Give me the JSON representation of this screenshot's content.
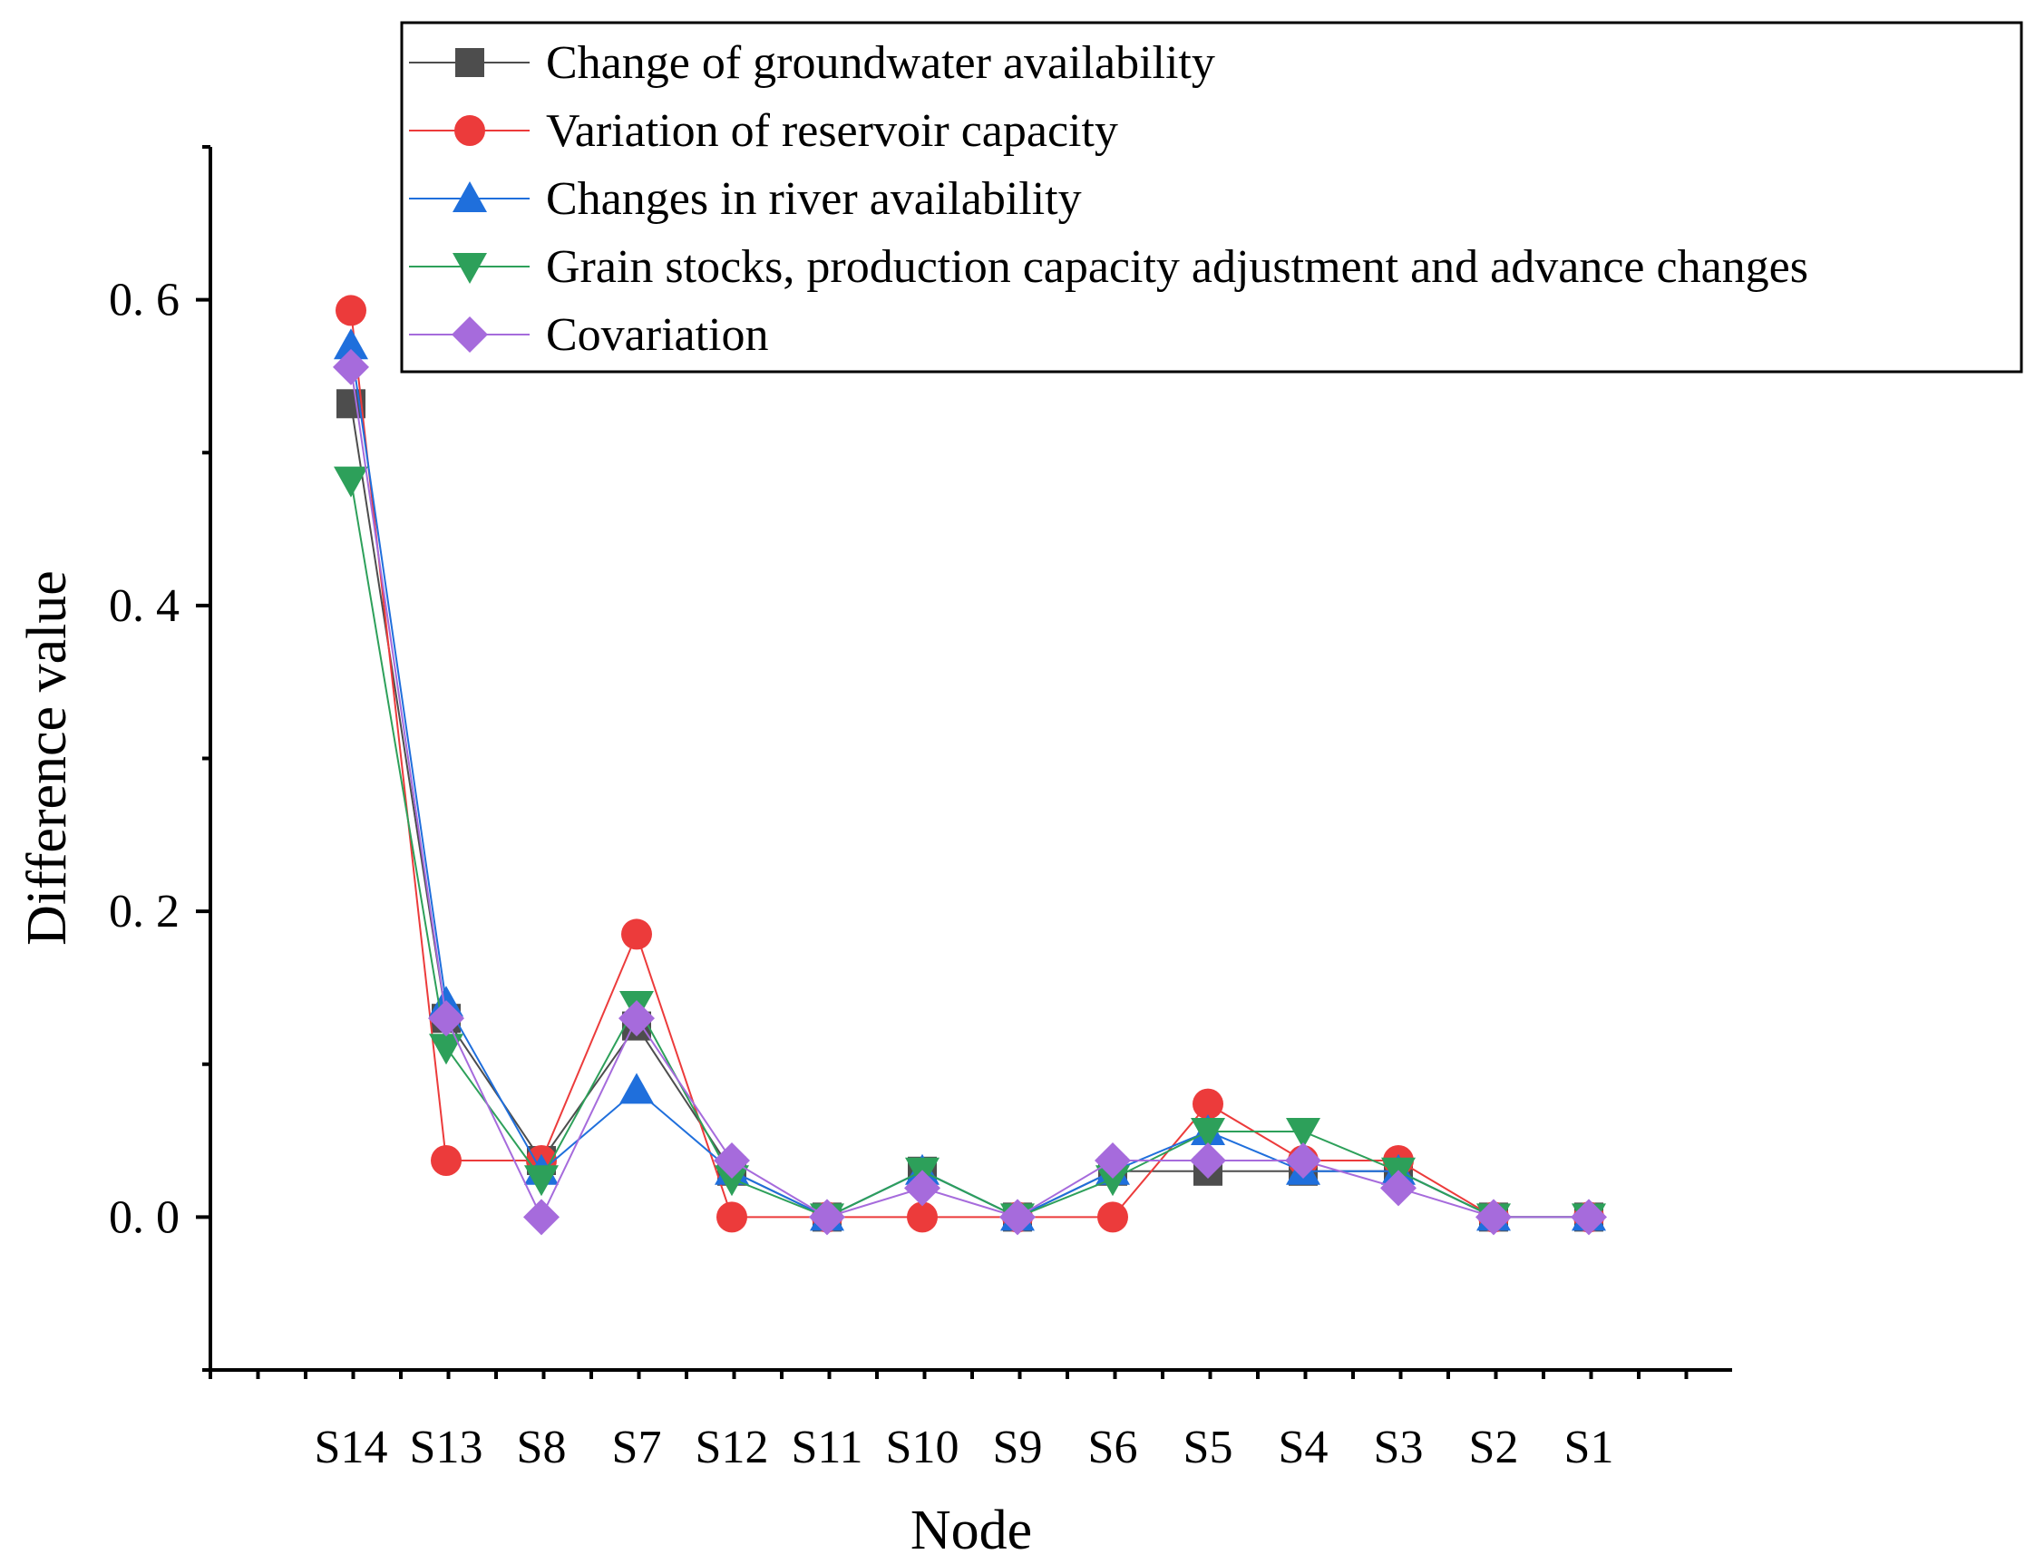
{
  "chart_data": {
    "type": "line",
    "xlabel": "Node",
    "ylabel": "Difference value",
    "categories": [
      "S14",
      "S13",
      "S8",
      "S7",
      "S12",
      "S11",
      "S10",
      "S9",
      "S6",
      "S5",
      "S4",
      "S3",
      "S2",
      "S1"
    ],
    "ylim": [
      -0.1,
      0.7
    ],
    "yticks": [
      0.0,
      0.2,
      0.4,
      0.6
    ],
    "ytick_labels": [
      "0. 0",
      "0. 2",
      "0. 4",
      "0. 6"
    ],
    "legend_position": "top-right",
    "series": [
      {
        "name": "Change of groundwater availability",
        "color": "#4d4d4d",
        "marker": "square",
        "values": [
          0.532,
          0.13,
          0.037,
          0.125,
          0.03,
          0.0,
          0.03,
          0.0,
          0.03,
          0.03,
          0.03,
          0.03,
          0.0,
          0.0
        ]
      },
      {
        "name": "Variation of reservoir capacity",
        "color": "#ec3b3b",
        "marker": "circle",
        "values": [
          0.593,
          0.037,
          0.037,
          0.185,
          0.0,
          0.0,
          0.0,
          0.0,
          0.0,
          0.074,
          0.037,
          0.037,
          0.0,
          0.0
        ]
      },
      {
        "name": "Changes in river availability",
        "color": "#1f6fdc",
        "marker": "triangle-up",
        "values": [
          0.57,
          0.14,
          0.03,
          0.083,
          0.03,
          0.0,
          0.03,
          0.0,
          0.03,
          0.056,
          0.03,
          0.03,
          0.0,
          0.0
        ]
      },
      {
        "name": "Grain stocks, production capacity adjustment and advance changes",
        "color": "#2da05a",
        "marker": "triangle-down",
        "values": [
          0.482,
          0.111,
          0.025,
          0.139,
          0.025,
          0.0,
          0.03,
          0.0,
          0.025,
          0.056,
          0.056,
          0.03,
          0.0,
          0.0
        ]
      },
      {
        "name": "Covariation",
        "color": "#a66bdc",
        "marker": "diamond",
        "values": [
          0.556,
          0.13,
          0.0,
          0.13,
          0.037,
          0.0,
          0.019,
          0.0,
          0.037,
          0.037,
          0.037,
          0.019,
          0.0,
          0.0
        ]
      }
    ]
  }
}
